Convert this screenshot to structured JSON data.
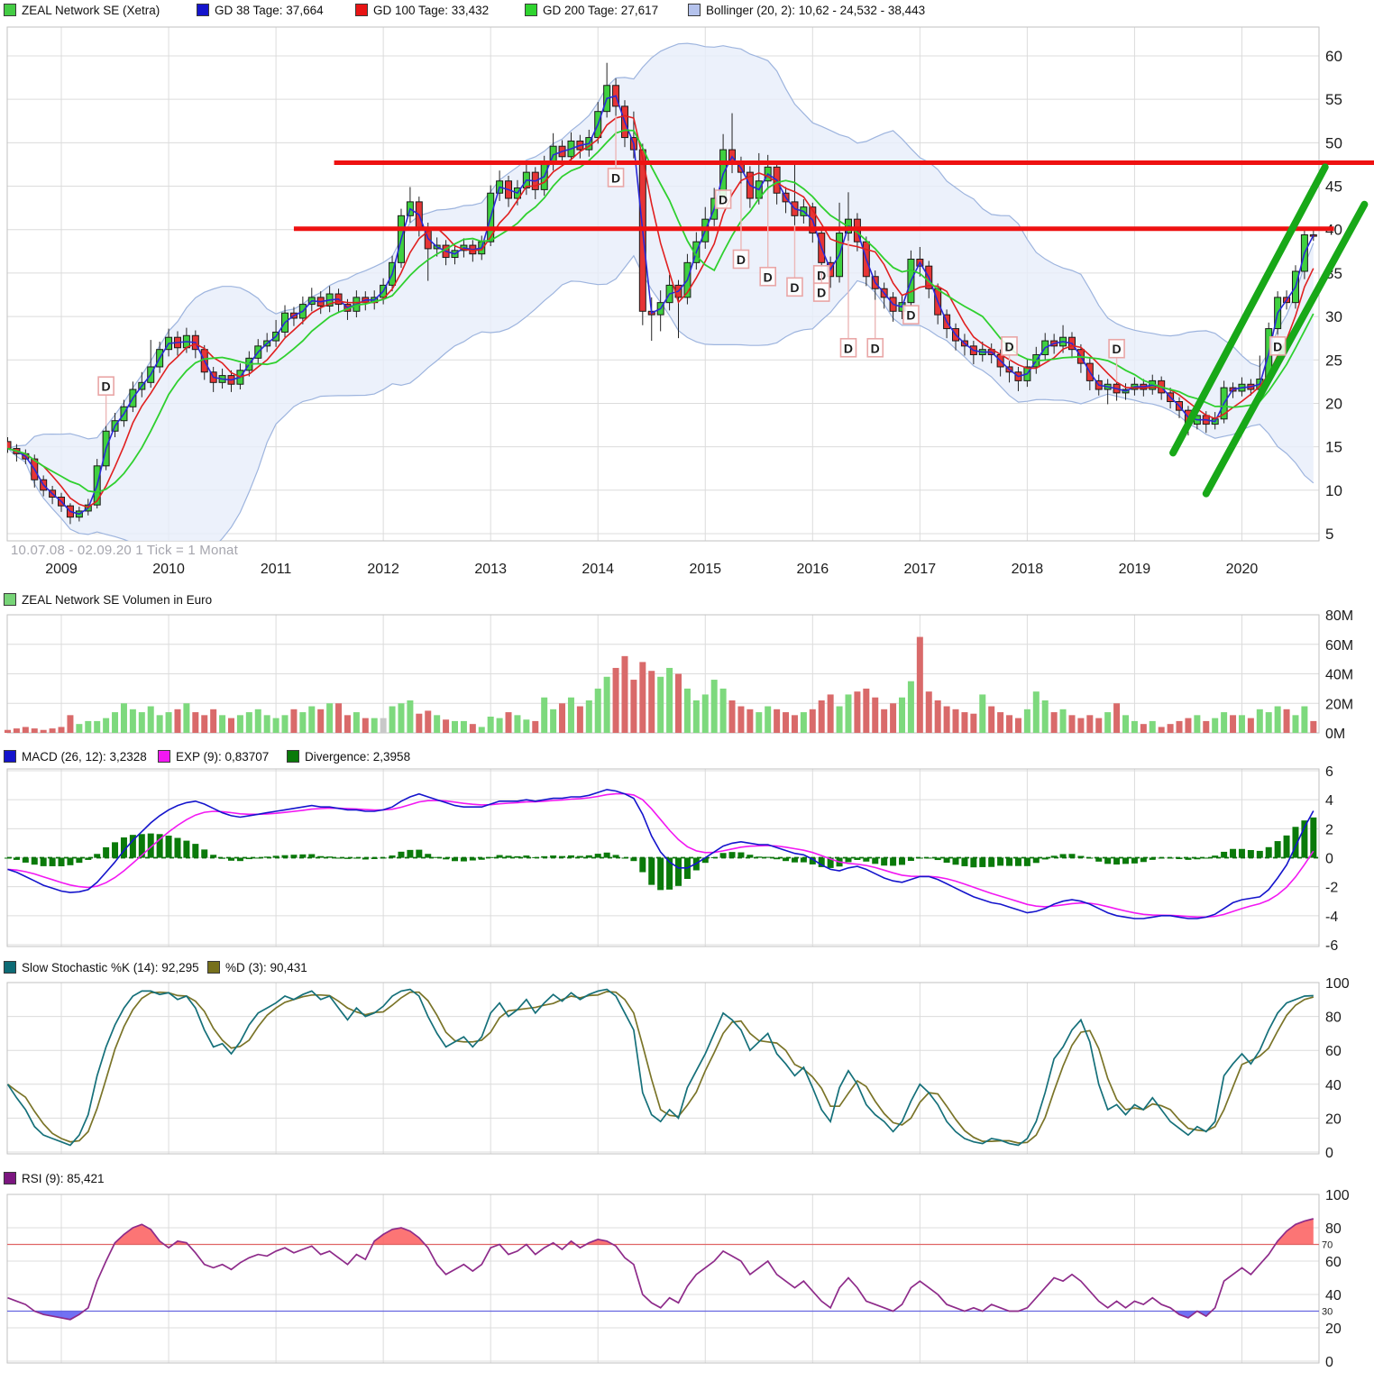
{
  "chart_meta": {
    "instrument": "ZEAL Network SE",
    "footnote": "10.07.08 - 02.09.20   1 Tick = 1 Monat"
  },
  "legends": {
    "price": [
      {
        "label": "ZEAL Network SE (Xetra)",
        "color": "#44cc44"
      },
      {
        "label": "GD 38 Tage: 37,664",
        "color": "#1414cc"
      },
      {
        "label": "GD 100 Tage: 33,432",
        "color": "#e81414"
      },
      {
        "label": "GD 200 Tage: 27,617",
        "color": "#2fd42f"
      },
      {
        "label": "Bollinger (20, 2): 10,62 - 24,532 - 38,443",
        "color": "#b4c2ec"
      }
    ],
    "volume": [
      {
        "label": "ZEAL Network SE Volumen in Euro",
        "color": "#77d477"
      }
    ],
    "macd": [
      {
        "label": "MACD (26, 12): 3,2328",
        "color": "#1414cc"
      },
      {
        "label": "EXP (9): 0,83707",
        "color": "#f218f2"
      },
      {
        "label": "Divergence: 2,3958",
        "color": "#0a7a0a"
      }
    ],
    "stochastic": [
      {
        "label": "Slow Stochastic %K (14): 92,295",
        "color": "#0d6b75"
      },
      {
        "label": "%D (3): 90,431",
        "color": "#76701c"
      }
    ],
    "rsi": [
      {
        "label": "RSI (9): 85,421",
        "color": "#7c1680"
      }
    ]
  },
  "colors": {
    "candle_up": "#3fd03f",
    "candle_down": "#e63535",
    "candle_edge": "#1a1a1a",
    "volume_up": "#7dd97d",
    "volume_down": "#d96a6a",
    "volume_neutral": "#c8c8c8",
    "gd38": "#2929d6",
    "gd100": "#e02020",
    "gd200": "#2fd02f",
    "bollinger_fill": "#e7eefa",
    "bollinger_edge": "#9db4de",
    "resistance": "#ee1111",
    "trend": "#18a818",
    "macd_line": "#1414cc",
    "macd_signal": "#f218f2",
    "macd_hist": "#0a7a0a",
    "stoch_k": "#15707a",
    "stoch_d": "#7a7428",
    "rsi_line": "#8e2b8a",
    "rsi_over_fill": "#fb5d5d",
    "rsi_under_fill": "#5858f2",
    "rsi_over_line": "#e06666",
    "rsi_under_line": "#6666e0",
    "grid": "#dcdcdc",
    "panel_border": "#c2c2c2",
    "dividend_box": "#e9a6a6",
    "dividend_text": "#d98888"
  },
  "chart_data": [
    {
      "id": "price",
      "type": "candlestick",
      "title": "ZEAL Network SE (Xetra)",
      "x_start": "2008-07",
      "x_interval_months": 1,
      "x_tick_labels": [
        "2009",
        "2010",
        "2011",
        "2012",
        "2013",
        "2014",
        "2015",
        "2016",
        "2017",
        "2018",
        "2019",
        "2020"
      ],
      "y_ticks": [
        5,
        10,
        15,
        20,
        25,
        30,
        35,
        40,
        45,
        50,
        55,
        60
      ],
      "ylim": [
        4,
        63
      ],
      "first_open": 15.6,
      "close": [
        14.8,
        14.2,
        13.6,
        11.2,
        10.0,
        9.2,
        8.2,
        6.9,
        7.6,
        8.3,
        12.8,
        16.8,
        18.0,
        19.6,
        21.6,
        22.4,
        24.2,
        26.2,
        27.6,
        26.4,
        27.8,
        26.2,
        23.6,
        22.4,
        23.2,
        22.2,
        23.8,
        25.2,
        26.6,
        27.2,
        28.2,
        30.4,
        29.8,
        31.4,
        32.2,
        31.2,
        32.6,
        31.4,
        30.6,
        32.2,
        31.6,
        32.2,
        33.6,
        36.2,
        41.6,
        43.2,
        40.2,
        37.8,
        38.2,
        36.8,
        37.6,
        38.2,
        37.2,
        38.6,
        44.2,
        45.6,
        43.6,
        44.8,
        46.6,
        44.6,
        47.6,
        49.6,
        48.4,
        50.2,
        49.2,
        50.6,
        53.6,
        56.6,
        54.2,
        50.6,
        49.2,
        30.6,
        30.2,
        31.6,
        33.6,
        32.2,
        36.2,
        38.6,
        41.2,
        43.6,
        49.2,
        47.6,
        46.6,
        43.6,
        45.6,
        47.2,
        44.2,
        43.2,
        41.6,
        42.6,
        39.6,
        36.2,
        34.6,
        39.6,
        41.2,
        38.6,
        34.6,
        33.2,
        32.2,
        30.6,
        31.6,
        36.6,
        35.8,
        33.2,
        30.2,
        28.6,
        27.2,
        26.6,
        25.6,
        26.2,
        25.6,
        24.2,
        23.6,
        22.6,
        24.2,
        25.6,
        27.2,
        26.6,
        27.6,
        26.2,
        24.6,
        22.6,
        21.6,
        22.2,
        21.2,
        21.6,
        22.2,
        21.6,
        22.6,
        21.2,
        20.2,
        19.2,
        17.6,
        18.6,
        17.6,
        18.2,
        21.8,
        21.4,
        22.2,
        21.6,
        22.8,
        28.6,
        32.2,
        31.6,
        35.2,
        39.4,
        39.3
      ],
      "high": [
        16.1,
        15.3,
        14.7,
        14.1,
        11.7,
        10.5,
        9.7,
        8.5,
        8.1,
        9.0,
        13.6,
        17.4,
        18.9,
        20.4,
        22.5,
        23.6,
        27.3,
        27.1,
        28.6,
        28.3,
        28.7,
        28.4,
        26.7,
        24.2,
        24.0,
        23.8,
        24.6,
        26.0,
        27.4,
        28.1,
        29.6,
        31.3,
        31.1,
        32.3,
        33.3,
        32.9,
        33.5,
        33.2,
        32.0,
        33.0,
        32.9,
        33.0,
        34.4,
        37.0,
        42.4,
        44.9,
        43.8,
        40.8,
        39.1,
        38.8,
        38.4,
        39.0,
        38.8,
        39.3,
        45.1,
        46.8,
        46.2,
        45.7,
        47.9,
        47.2,
        48.5,
        51.1,
        50.3,
        51.2,
        50.9,
        51.5,
        54.7,
        59.2,
        57.4,
        54.9,
        53.6,
        49.9,
        32.2,
        33.0,
        34.8,
        34.2,
        37.2,
        39.7,
        42.6,
        44.8,
        51.0,
        53.4,
        48.4,
        47.3,
        48.8,
        48.6,
        47.8,
        44.9,
        47.7,
        43.5,
        43.1,
        40.1,
        36.9,
        43.1,
        44.3,
        41.9,
        39.2,
        35.3,
        33.9,
        32.8,
        32.5,
        37.6,
        38.0,
        36.4,
        33.8,
        30.8,
        29.2,
        28.0,
        27.2,
        27.1,
        26.9,
        26.2,
        24.9,
        24.2,
        25.1,
        26.5,
        28.1,
        28.0,
        29.0,
        28.2,
        26.8,
        25.2,
        23.3,
        22.8,
        22.5,
        22.3,
        23.0,
        22.8,
        23.3,
        23.1,
        21.8,
        20.7,
        19.7,
        19.3,
        19.1,
        19.0,
        22.6,
        22.4,
        23.0,
        22.8,
        25.5,
        29.3,
        32.9,
        33.0,
        35.9,
        40.0,
        40.0
      ],
      "low": [
        14.3,
        13.3,
        13.0,
        10.3,
        9.3,
        8.4,
        7.5,
        6.1,
        6.4,
        7.1,
        7.9,
        12.3,
        16.1,
        17.3,
        19.0,
        20.7,
        21.8,
        23.5,
        25.4,
        25.5,
        25.8,
        25.2,
        22.7,
        21.3,
        21.7,
        21.3,
        21.6,
        23.1,
        24.6,
        25.9,
        26.5,
        27.6,
        28.9,
        29.1,
        30.6,
        30.3,
        30.5,
        30.4,
        29.6,
        29.9,
        30.7,
        30.8,
        31.4,
        32.9,
        35.6,
        40.8,
        39.2,
        34.1,
        36.9,
        35.9,
        36.0,
        36.8,
        36.3,
        36.5,
        38.1,
        43.3,
        42.6,
        42.8,
        44.0,
        43.5,
        43.9,
        46.8,
        47.3,
        47.6,
        48.2,
        48.4,
        49.9,
        52.9,
        53.1,
        49.5,
        48.2,
        29.0,
        27.2,
        28.3,
        30.7,
        27.5,
        31.4,
        35.4,
        37.8,
        40.4,
        42.9,
        46.5,
        45.3,
        42.5,
        42.9,
        44.6,
        42.9,
        41.9,
        40.5,
        40.7,
        38.5,
        35.0,
        33.3,
        33.9,
        38.7,
        37.5,
        33.5,
        31.9,
        30.9,
        29.4,
        29.7,
        30.9,
        34.6,
        32.1,
        29.1,
        27.5,
        26.1,
        25.5,
        24.5,
        24.8,
        24.6,
        23.1,
        22.4,
        21.4,
        21.9,
        23.4,
        24.9,
        25.7,
        25.8,
        25.2,
        23.5,
        21.5,
        20.9,
        19.9,
        20.3,
        20.4,
        20.9,
        20.8,
        21.0,
        20.4,
        19.4,
        18.3,
        16.3,
        17.0,
        16.6,
        17.0,
        17.7,
        20.6,
        20.8,
        20.9,
        21.0,
        22.3,
        27.9,
        30.8,
        30.9,
        34.3,
        38.7
      ],
      "moving_averages": {
        "gd38_window": 2,
        "gd100_window": 5,
        "gd200_window": 9,
        "bollinger_window": 20,
        "bollinger_sigma": 2
      },
      "resistance_lines": [
        {
          "value": 47.7,
          "from_i": 36.5,
          "to_i": 153.0
        },
        {
          "value": 40.1,
          "from_i": 32.0,
          "to_i": 148.3
        }
      ],
      "trend_lines": [
        {
          "from_i": 130.3,
          "from_v": 14.3,
          "to_i": 147.3,
          "to_v": 47.2
        },
        {
          "from_i": 134.0,
          "from_v": 9.6,
          "to_i": 151.7,
          "to_v": 42.9
        }
      ],
      "dividend_markers": [
        {
          "i": 11,
          "v": 22.0
        },
        {
          "i": 68,
          "v": 46.0
        },
        {
          "i": 80,
          "v": 43.5
        },
        {
          "i": 82,
          "v": 36.6
        },
        {
          "i": 85,
          "v": 34.6
        },
        {
          "i": 88,
          "v": 33.4
        },
        {
          "i": 91,
          "v": 34.8
        },
        {
          "i": 91,
          "v": 32.8
        },
        {
          "i": 94,
          "v": 26.4
        },
        {
          "i": 97,
          "v": 26.4
        },
        {
          "i": 101,
          "v": 30.2
        },
        {
          "i": 112,
          "v": 26.6
        },
        {
          "i": 124,
          "v": 26.3
        },
        {
          "i": 142,
          "v": 26.6
        }
      ],
      "dividend_label": "D"
    },
    {
      "id": "volume",
      "type": "bar",
      "title": "ZEAL Network SE Volumen in Euro",
      "unit": "M",
      "y_ticks": [
        0,
        20,
        40,
        60,
        80
      ],
      "ylim": [
        0,
        80
      ],
      "values": [
        2,
        3,
        4,
        3,
        2,
        3,
        4,
        12,
        6,
        8,
        8,
        10,
        14,
        20,
        16,
        14,
        18,
        12,
        14,
        16,
        20,
        14,
        12,
        16,
        12,
        10,
        12,
        14,
        16,
        12,
        10,
        12,
        16,
        14,
        18,
        16,
        20,
        20,
        12,
        14,
        10,
        10,
        10,
        18,
        20,
        22,
        13,
        15,
        12,
        9,
        8,
        8,
        6,
        4,
        11,
        10,
        14,
        12,
        9,
        8,
        24,
        16,
        20,
        24,
        18,
        22,
        30,
        38,
        44,
        52,
        36,
        48,
        42,
        38,
        44,
        40,
        30,
        22,
        26,
        36,
        30,
        22,
        18,
        16,
        14,
        18,
        16,
        14,
        12,
        14,
        16,
        22,
        26,
        18,
        26,
        28,
        30,
        24,
        16,
        20,
        24,
        35,
        65,
        28,
        22,
        18,
        16,
        14,
        13,
        26,
        18,
        14,
        12,
        10,
        16,
        28,
        22,
        14,
        16,
        12,
        10,
        12,
        10,
        14,
        20,
        12,
        8,
        6,
        8,
        4,
        6,
        8,
        10,
        12,
        8,
        10,
        14,
        12,
        12,
        10,
        16,
        14,
        18,
        16,
        12,
        18,
        8
      ],
      "gray_indices": [
        42
      ]
    },
    {
      "id": "macd",
      "type": "line+histogram",
      "y_ticks": [
        -6,
        -4,
        -2,
        0,
        2,
        4,
        6
      ],
      "ylim": [
        -6.5,
        6.5
      ],
      "signal_rule": "EMA9 of macd",
      "histogram_rule": "macd minus signal",
      "macd": [
        -0.8,
        -1.0,
        -1.3,
        -1.6,
        -1.9,
        -2.1,
        -2.3,
        -2.4,
        -2.35,
        -2.2,
        -1.7,
        -1.0,
        -0.3,
        0.5,
        1.2,
        1.8,
        2.4,
        2.9,
        3.3,
        3.6,
        3.8,
        3.9,
        3.7,
        3.4,
        3.1,
        2.9,
        2.8,
        2.9,
        3.0,
        3.1,
        3.2,
        3.3,
        3.4,
        3.5,
        3.6,
        3.5,
        3.5,
        3.4,
        3.3,
        3.3,
        3.2,
        3.2,
        3.3,
        3.5,
        3.9,
        4.2,
        4.4,
        4.2,
        4.0,
        3.8,
        3.6,
        3.5,
        3.5,
        3.5,
        3.7,
        3.9,
        3.9,
        3.9,
        4.0,
        3.9,
        4.0,
        4.1,
        4.1,
        4.2,
        4.2,
        4.3,
        4.5,
        4.7,
        4.6,
        4.4,
        4.1,
        3.0,
        1.5,
        0.4,
        -0.3,
        -0.7,
        -0.7,
        -0.4,
        0.0,
        0.4,
        0.8,
        1.0,
        1.1,
        1.0,
        0.9,
        0.9,
        0.7,
        0.5,
        0.3,
        0.2,
        -0.1,
        -0.5,
        -0.8,
        -0.9,
        -0.7,
        -0.6,
        -0.8,
        -1.1,
        -1.4,
        -1.6,
        -1.7,
        -1.5,
        -1.3,
        -1.3,
        -1.5,
        -1.8,
        -2.1,
        -2.4,
        -2.7,
        -2.9,
        -3.1,
        -3.2,
        -3.4,
        -3.6,
        -3.8,
        -3.7,
        -3.5,
        -3.2,
        -3.0,
        -2.9,
        -3.0,
        -3.2,
        -3.5,
        -3.8,
        -4.0,
        -4.1,
        -4.2,
        -4.2,
        -4.1,
        -4.0,
        -4.0,
        -4.1,
        -4.2,
        -4.2,
        -4.1,
        -3.9,
        -3.5,
        -3.1,
        -2.9,
        -2.8,
        -2.7,
        -2.2,
        -1.4,
        -0.5,
        0.8,
        2.1,
        3.2328
      ]
    },
    {
      "id": "stochastic",
      "type": "line",
      "y_ticks": [
        0,
        20,
        40,
        60,
        80,
        100
      ],
      "ylim": [
        0,
        100
      ],
      "d_rule": "SMA3 of k",
      "k": [
        40,
        32,
        25,
        15,
        10,
        8,
        6,
        4,
        10,
        22,
        45,
        62,
        75,
        85,
        92,
        95,
        95,
        93,
        94,
        90,
        92,
        85,
        72,
        62,
        64,
        58,
        65,
        75,
        82,
        85,
        88,
        92,
        90,
        93,
        95,
        90,
        92,
        85,
        78,
        85,
        80,
        82,
        86,
        92,
        95,
        96,
        92,
        80,
        70,
        62,
        65,
        68,
        62,
        68,
        82,
        88,
        80,
        84,
        90,
        82,
        88,
        93,
        89,
        94,
        90,
        93,
        95,
        96,
        92,
        82,
        72,
        35,
        22,
        18,
        25,
        20,
        38,
        48,
        58,
        70,
        82,
        78,
        72,
        60,
        65,
        70,
        58,
        52,
        45,
        50,
        38,
        25,
        18,
        38,
        48,
        40,
        28,
        22,
        18,
        12,
        18,
        30,
        40,
        35,
        28,
        18,
        12,
        8,
        6,
        5,
        8,
        7,
        5,
        4,
        8,
        18,
        35,
        55,
        62,
        72,
        78,
        65,
        40,
        25,
        28,
        22,
        28,
        25,
        32,
        25,
        18,
        14,
        10,
        15,
        12,
        18,
        45,
        52,
        58,
        52,
        60,
        72,
        82,
        88,
        90,
        92,
        92.295
      ]
    },
    {
      "id": "rsi",
      "type": "line",
      "y_ticks": [
        0,
        20,
        40,
        60,
        80,
        100
      ],
      "ylim": [
        0,
        100
      ],
      "overbought": 70,
      "oversold": 30,
      "values": [
        38,
        36,
        34,
        30,
        28,
        27,
        26,
        25,
        28,
        32,
        48,
        60,
        71,
        76,
        80,
        82,
        79,
        72,
        68,
        72,
        71,
        65,
        58,
        56,
        58,
        55,
        59,
        62,
        64,
        63,
        66,
        68,
        65,
        67,
        69,
        64,
        66,
        62,
        58,
        64,
        61,
        72,
        76,
        79,
        80,
        78,
        74,
        68,
        58,
        52,
        55,
        58,
        54,
        58,
        68,
        70,
        64,
        66,
        70,
        64,
        68,
        71,
        67,
        72,
        68,
        71,
        73,
        72,
        69,
        62,
        58,
        40,
        35,
        32,
        38,
        35,
        45,
        52,
        56,
        60,
        66,
        63,
        60,
        52,
        56,
        60,
        52,
        48,
        44,
        48,
        42,
        36,
        32,
        44,
        50,
        44,
        36,
        34,
        32,
        30,
        34,
        44,
        48,
        44,
        40,
        34,
        32,
        30,
        32,
        30,
        34,
        32,
        30,
        30,
        32,
        38,
        44,
        50,
        48,
        52,
        48,
        42,
        36,
        32,
        36,
        32,
        36,
        34,
        38,
        34,
        32,
        28,
        26,
        30,
        27,
        32,
        48,
        52,
        56,
        52,
        58,
        64,
        72,
        78,
        82,
        84,
        85.421
      ]
    }
  ]
}
